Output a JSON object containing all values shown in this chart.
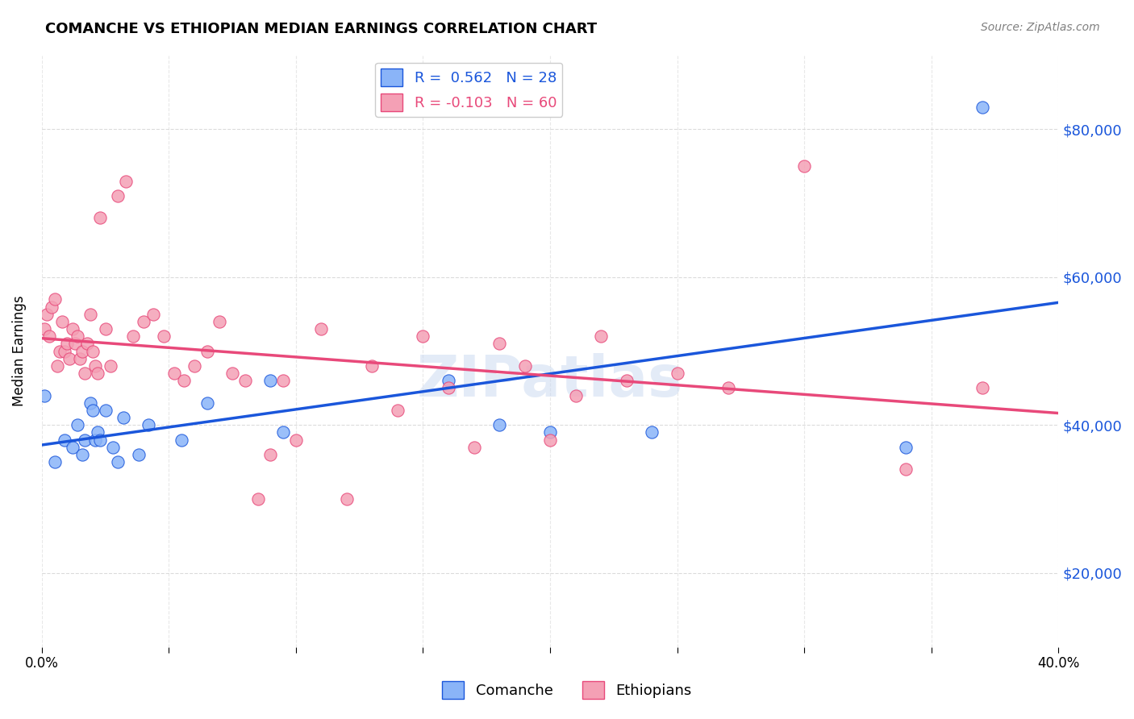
{
  "title": "COMANCHE VS ETHIOPIAN MEDIAN EARNINGS CORRELATION CHART",
  "source": "Source: ZipAtlas.com",
  "ylabel": "Median Earnings",
  "y_ticks": [
    20000,
    40000,
    60000,
    80000
  ],
  "y_tick_labels": [
    "$20,000",
    "$40,000",
    "$60,000",
    "$80,000"
  ],
  "x_range": [
    0.0,
    0.4
  ],
  "y_range": [
    10000,
    90000
  ],
  "comanche_R": 0.562,
  "comanche_N": 28,
  "ethiopian_R": -0.103,
  "ethiopian_N": 60,
  "comanche_color": "#8ab4f8",
  "ethiopian_color": "#f4a0b5",
  "comanche_line_color": "#1a56db",
  "ethiopian_line_color": "#e8497a",
  "comanche_x": [
    0.001,
    0.005,
    0.009,
    0.012,
    0.014,
    0.016,
    0.017,
    0.019,
    0.02,
    0.021,
    0.022,
    0.023,
    0.025,
    0.028,
    0.03,
    0.032,
    0.038,
    0.042,
    0.055,
    0.065,
    0.09,
    0.095,
    0.16,
    0.18,
    0.2,
    0.24,
    0.34,
    0.37
  ],
  "comanche_y": [
    44000,
    35000,
    38000,
    37000,
    40000,
    36000,
    38000,
    43000,
    42000,
    38000,
    39000,
    38000,
    42000,
    37000,
    35000,
    41000,
    36000,
    40000,
    38000,
    43000,
    46000,
    39000,
    46000,
    40000,
    39000,
    39000,
    37000,
    83000
  ],
  "ethiopian_x": [
    0.001,
    0.002,
    0.003,
    0.004,
    0.005,
    0.006,
    0.007,
    0.008,
    0.009,
    0.01,
    0.011,
    0.012,
    0.013,
    0.014,
    0.015,
    0.016,
    0.017,
    0.018,
    0.019,
    0.02,
    0.021,
    0.022,
    0.023,
    0.025,
    0.027,
    0.03,
    0.033,
    0.036,
    0.04,
    0.044,
    0.048,
    0.052,
    0.056,
    0.06,
    0.065,
    0.07,
    0.075,
    0.08,
    0.085,
    0.09,
    0.095,
    0.1,
    0.11,
    0.12,
    0.13,
    0.14,
    0.15,
    0.16,
    0.17,
    0.18,
    0.19,
    0.2,
    0.21,
    0.22,
    0.23,
    0.25,
    0.27,
    0.3,
    0.34,
    0.37
  ],
  "ethiopian_y": [
    53000,
    55000,
    52000,
    56000,
    57000,
    48000,
    50000,
    54000,
    50000,
    51000,
    49000,
    53000,
    51000,
    52000,
    49000,
    50000,
    47000,
    51000,
    55000,
    50000,
    48000,
    47000,
    68000,
    53000,
    48000,
    71000,
    73000,
    52000,
    54000,
    55000,
    52000,
    47000,
    46000,
    48000,
    50000,
    54000,
    47000,
    46000,
    30000,
    36000,
    46000,
    38000,
    53000,
    30000,
    48000,
    42000,
    52000,
    45000,
    37000,
    51000,
    48000,
    38000,
    44000,
    52000,
    46000,
    47000,
    45000,
    75000,
    34000,
    45000
  ]
}
